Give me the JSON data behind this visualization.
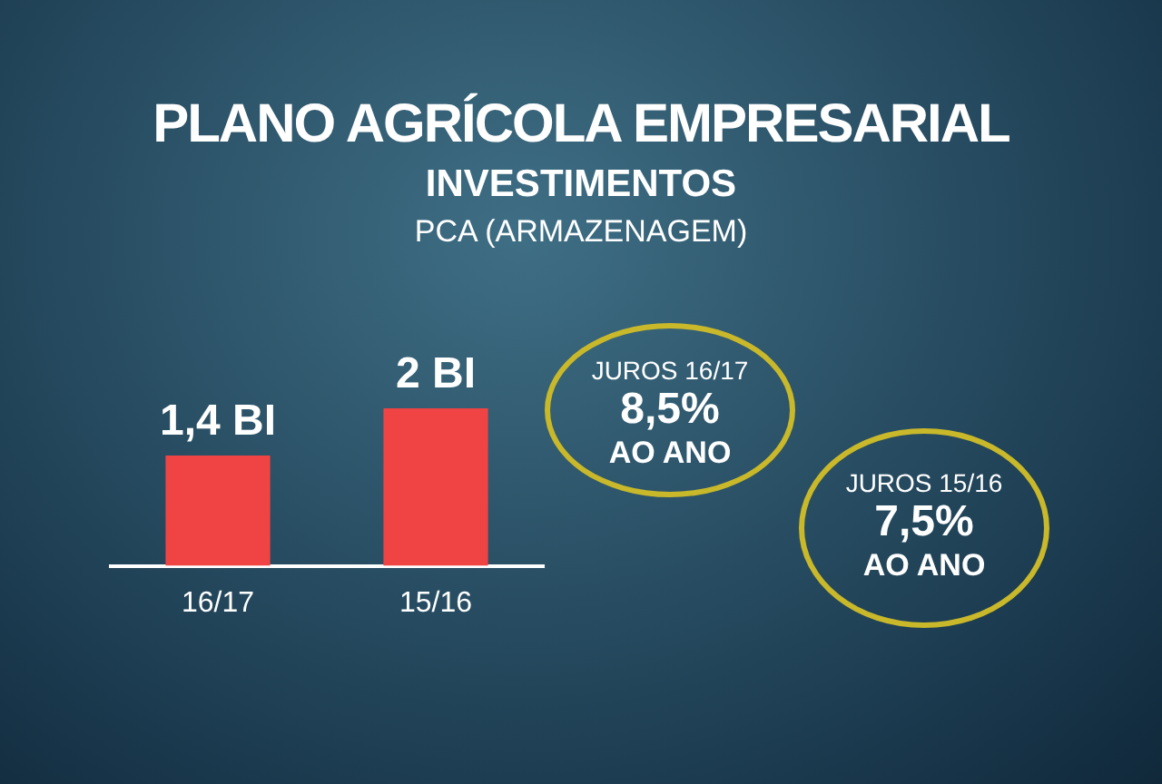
{
  "chart_data": {
    "type": "bar",
    "title": "PLANO AGRÍCOLA EMPRESARIAL",
    "subtitle": "INVESTIMENTOS",
    "annotations": [
      "PCA (ARMAZENAGEM)",
      "JUROS 16/17 8,5% AO ANO",
      "JUROS 15/16 7,5% AO ANO"
    ],
    "categories": [
      "16/17",
      "15/16"
    ],
    "values": [
      1.4,
      2
    ],
    "value_labels": [
      "1,4 BI",
      "2 BI"
    ],
    "color": "#f04444"
  }
}
